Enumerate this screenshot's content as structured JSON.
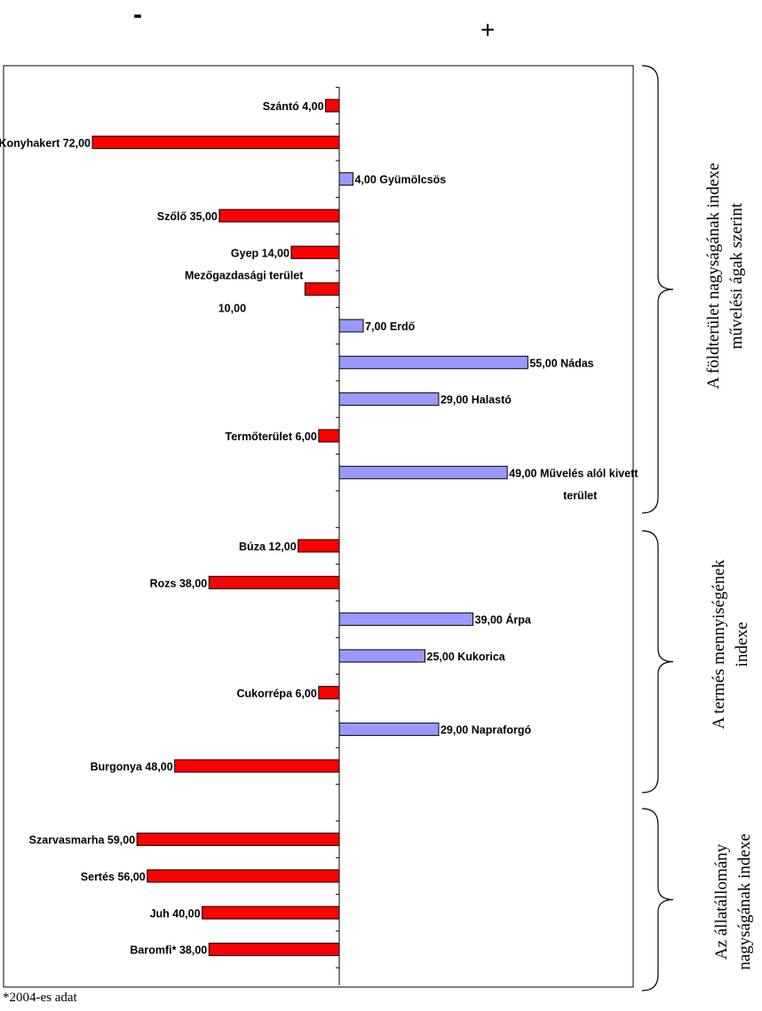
{
  "signs": {
    "negative": "-",
    "positive": "+"
  },
  "footnote": "*2004-es adat",
  "colors": {
    "negative_bar": "#ff0000",
    "positive_bar": "#9999ff",
    "bar_edge": "#000000"
  },
  "chart_data": {
    "type": "bar",
    "orientation": "horizontal",
    "xlim": [
      -72,
      55
    ],
    "groups": [
      {
        "title_lines": [
          "A földterület nagyságának indexe",
          "művelési ágak szerint"
        ],
        "rows": [
          {
            "label": "Szántó 4,00",
            "value": -4.0
          },
          {
            "label": "Konyhakert 72,00",
            "value": -72.0
          },
          {
            "label": "4,00 Gyümölcsös",
            "value": 4.0
          },
          {
            "label": "Szőlő 35,00",
            "value": -35.0
          },
          {
            "label": "Gyep 14,00",
            "value": -14.0
          },
          {
            "label": "Mezőgazdasági terület",
            "label2": "10,00",
            "value": -10.0
          },
          {
            "label": "7,00 Erdő",
            "value": 7.0
          },
          {
            "label": "55,00 Nádas",
            "value": 55.0
          },
          {
            "label": "29,00 Halastó",
            "value": 29.0
          },
          {
            "label": "Termőterület 6,00",
            "value": -6.0
          },
          {
            "label": "49,00 Művelés alól kivett",
            "label2": "terület",
            "value": 49.0
          }
        ]
      },
      {
        "title_lines": [
          "A termés mennyiségének",
          "indexe"
        ],
        "rows": [
          {
            "label": "Búza 12,00",
            "value": -12.0
          },
          {
            "label": "Rozs 38,00",
            "value": -38.0
          },
          {
            "label": "39,00 Árpa",
            "value": 39.0
          },
          {
            "label": "25,00 Kukorica",
            "value": 25.0
          },
          {
            "label": "Cukorrépa 6,00",
            "value": -6.0
          },
          {
            "label": "29,00 Napraforgó",
            "value": 29.0
          },
          {
            "label": "Burgonya 48,00",
            "value": -48.0
          }
        ]
      },
      {
        "title_lines": [
          "Az állatállomány",
          "nagyságának indexe"
        ],
        "rows": [
          {
            "label": "Szarvasmarha 59,00",
            "value": -59.0
          },
          {
            "label": "Sertés 56,00",
            "value": -56.0
          },
          {
            "label": "Juh 40,00",
            "value": -40.0
          },
          {
            "label": "Baromfi* 38,00",
            "value": -38.0
          }
        ]
      }
    ]
  }
}
